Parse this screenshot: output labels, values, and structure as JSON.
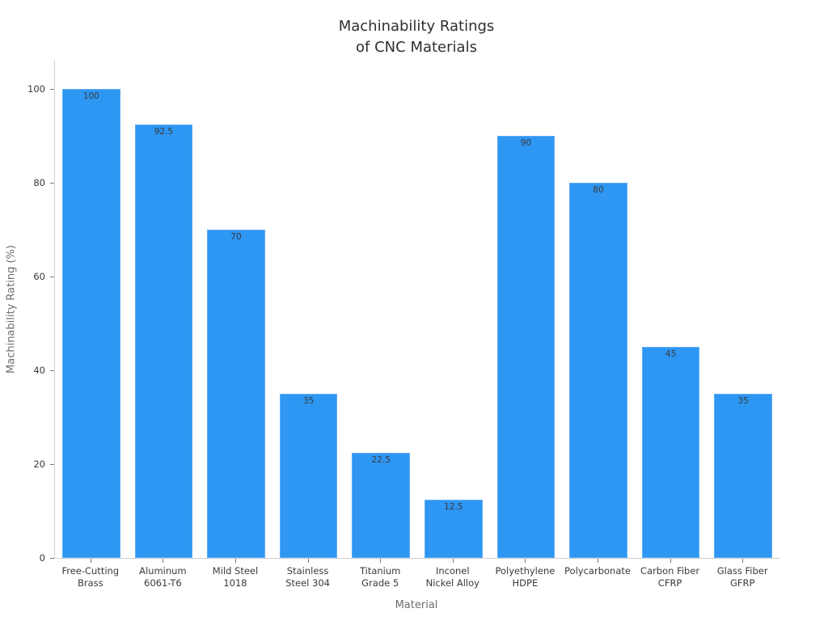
{
  "title": "Machinability Ratings\nof CNC Materials",
  "chart_data": {
    "type": "bar",
    "title": "Machinability Ratings of CNC Materials",
    "xlabel": "Material",
    "ylabel": "Machinability Rating (%)",
    "categories": [
      "Free-Cutting\nBrass",
      "Aluminum\n6061-T6",
      "Mild Steel\n1018",
      "Stainless\nSteel 304",
      "Titanium\nGrade 5",
      "Inconel\nNickel Alloy",
      "Polyethylene\nHDPE",
      "Polycarbonate",
      "Carbon Fiber\nCFRP",
      "Glass Fiber\nGFRP"
    ],
    "values": [
      100,
      92.5,
      70,
      35,
      22.5,
      12.5,
      90,
      80,
      45,
      35
    ],
    "yticks": [
      0,
      20,
      40,
      60,
      80,
      100
    ],
    "ylim": [
      0,
      100
    ],
    "grid": false,
    "legend": "none",
    "value_labels_shown": true
  },
  "colors": {
    "bar": "#2e96f3",
    "bar_edge": "#5fadf5",
    "title_text": "#2f2f2f",
    "tick_text": "#3a3a3a",
    "axis_title_text": "#6e6e6e",
    "spine": "#cfcfcf",
    "tick_mark": "#777777",
    "background": "#ffffff"
  }
}
